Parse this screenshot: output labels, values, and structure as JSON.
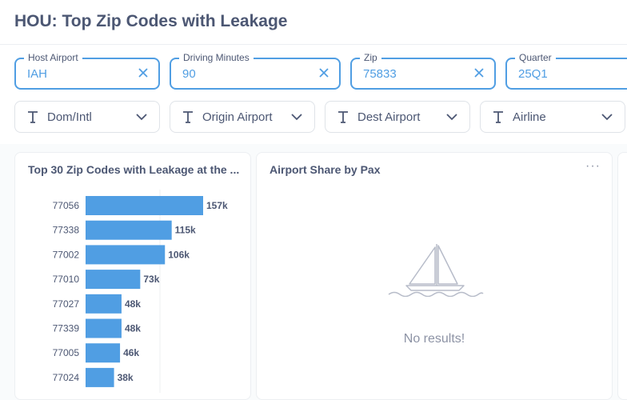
{
  "page": {
    "title": "HOU: Top Zip Codes with Leakage"
  },
  "filters": [
    {
      "label": "Host Airport",
      "value": "IAH"
    },
    {
      "label": "Driving Minutes",
      "value": "90"
    },
    {
      "label": "Zip",
      "value": "75833"
    },
    {
      "label": "Quarter",
      "value": "25Q1"
    }
  ],
  "dropdowns": [
    "Dom/Intl",
    "Origin Airport",
    "Dest Airport",
    "Airline"
  ],
  "cards": {
    "leakage": {
      "title": "Top 30 Zip Codes with Leakage at the ..."
    },
    "share": {
      "title": "Airport Share by Pax",
      "menu": "···",
      "empty": "No results!"
    }
  },
  "chart_data": {
    "type": "bar",
    "orientation": "horizontal",
    "title": "Top 30 Zip Codes with Leakage at the ...",
    "categories": [
      "77056",
      "77338",
      "77002",
      "77010",
      "77027",
      "77339",
      "77005",
      "77024"
    ],
    "values": [
      157000,
      115000,
      106000,
      73000,
      48000,
      48000,
      46000,
      38000
    ],
    "labels": [
      "157k",
      "115k",
      "106k",
      "73k",
      "48k",
      "48k",
      "46k",
      "38k"
    ],
    "color": "#509ee3"
  },
  "colors": {
    "accent": "#509ee3",
    "text": "#4c5773",
    "muted": "#8d93a5",
    "border": "#dfe3e8"
  }
}
